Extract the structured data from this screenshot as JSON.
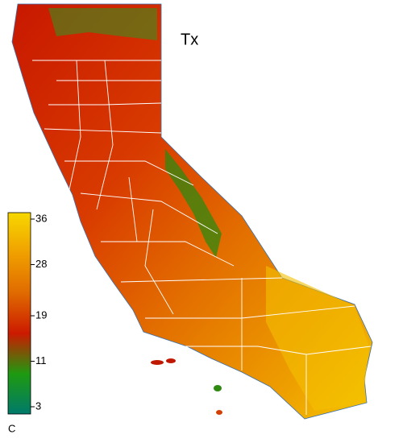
{
  "map": {
    "title": "Tx",
    "colorbar": {
      "unit": "C",
      "lim": [
        3,
        36
      ],
      "ticks": [
        36,
        28,
        19,
        11,
        3
      ],
      "colors": [
        "#007a6a",
        "#1f9a10",
        "#cc1a00",
        "#e06a00",
        "#f0a000",
        "#f7d800"
      ]
    }
  }
}
